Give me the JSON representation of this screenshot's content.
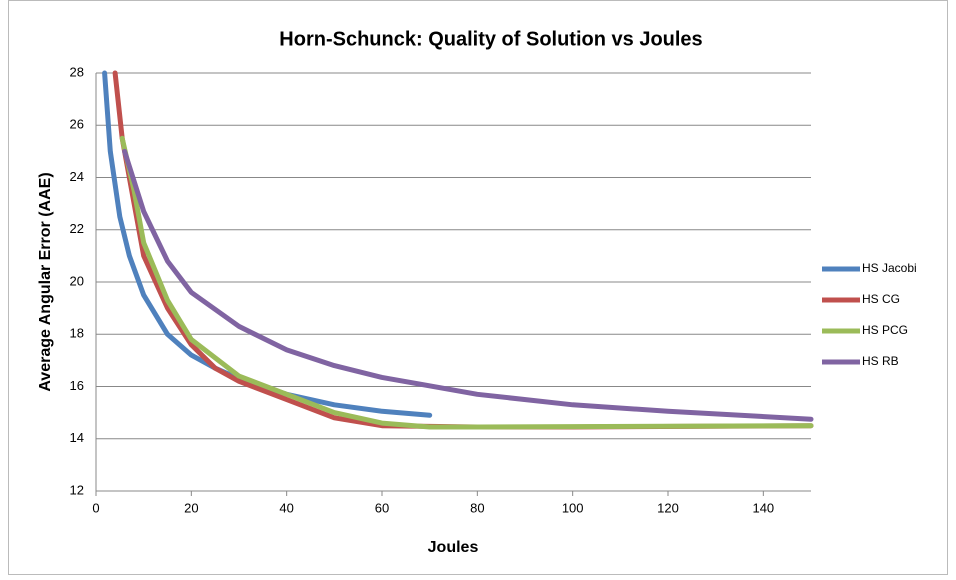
{
  "chart_data": {
    "type": "line",
    "title": "Horn-Schunck: Quality of Solution vs Joules",
    "x_label": "Joules",
    "y_label": "Average Angular Error (AAE)",
    "xlim": [
      0,
      150
    ],
    "xticks": [
      0,
      20,
      40,
      60,
      80,
      100,
      120,
      140
    ],
    "ylim": [
      12,
      28
    ],
    "yticks": [
      12,
      14,
      16,
      18,
      20,
      22,
      24,
      26,
      28
    ],
    "grid": true,
    "legend": "right",
    "series": [
      {
        "name": "HS Jacobi",
        "color": "#4f81bd",
        "x": [
          1.8,
          3,
          5,
          7,
          10,
          15,
          20,
          25,
          30,
          40,
          50,
          60,
          70
        ],
        "values": [
          28,
          25,
          22.5,
          21,
          19.5,
          18,
          17.2,
          16.7,
          16.3,
          15.7,
          15.3,
          15.05,
          14.9
        ]
      },
      {
        "name": "HS CG",
        "color": "#c0504d",
        "x": [
          4,
          5.5,
          8,
          10,
          15,
          20,
          25,
          30,
          40,
          50,
          60,
          80,
          100,
          150
        ],
        "values": [
          28,
          25.5,
          23,
          21,
          19,
          17.6,
          16.7,
          16.2,
          15.5,
          14.8,
          14.5,
          14.45,
          14.45,
          14.5
        ]
      },
      {
        "name": "HS PCG",
        "color": "#9bbb59",
        "x": [
          5.5,
          8,
          10,
          15,
          20,
          30,
          40,
          50,
          60,
          70,
          80,
          150
        ],
        "values": [
          25.5,
          23.5,
          21.5,
          19.3,
          17.8,
          16.4,
          15.7,
          15,
          14.6,
          14.45,
          14.45,
          14.5
        ]
      },
      {
        "name": "HS RB",
        "color": "#8064a2",
        "x": [
          6,
          10,
          15,
          20,
          30,
          40,
          50,
          60,
          80,
          100,
          120,
          150
        ],
        "values": [
          25,
          22.7,
          20.8,
          19.6,
          18.3,
          17.4,
          16.8,
          16.35,
          15.7,
          15.3,
          15.05,
          14.75
        ]
      }
    ]
  }
}
